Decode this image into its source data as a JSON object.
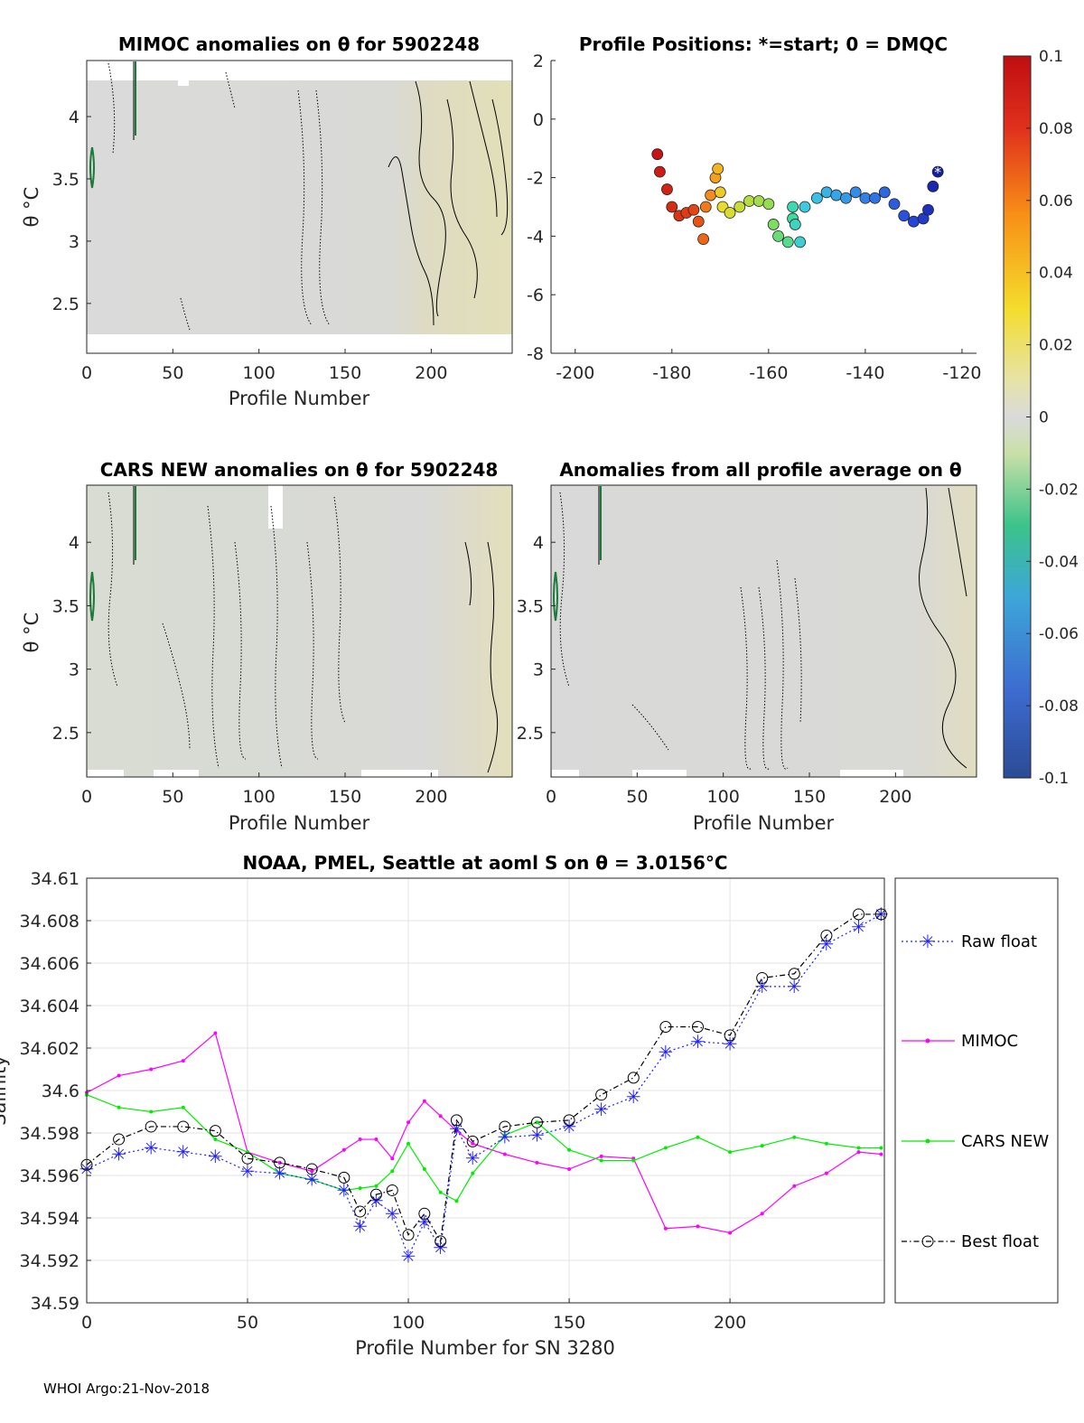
{
  "footer": "WHOI Argo:21-Nov-2018",
  "chart_data": [
    {
      "id": "mimoc",
      "type": "heatmap",
      "title": "MIMOC anomalies on θ  for 5902248",
      "xlabel": "Profile Number",
      "ylabel": "θ °C",
      "xlim": [
        0,
        247
      ],
      "ylim": [
        2.1,
        4.45
      ],
      "xticks": [
        0,
        50,
        100,
        150,
        200
      ],
      "yticks": [
        2.5,
        3,
        3.5,
        4
      ]
    },
    {
      "id": "positions",
      "type": "scatter",
      "title": "Profile Positions: *=start; 0 = DMQC",
      "xlim": [
        -205,
        -117
      ],
      "ylim": [
        -8,
        2
      ],
      "xticks": [
        -200,
        -180,
        -160,
        -140,
        -120
      ],
      "yticks": [
        -8,
        -6,
        -4,
        -2,
        0,
        2
      ],
      "track_lon": [
        -183,
        -182.5,
        -181,
        -180,
        -178.5,
        -177,
        -175.5,
        -174.5,
        -173.5,
        -173,
        -172,
        -171,
        -170.5,
        -170,
        -169.5,
        -168,
        -166,
        -164,
        -162,
        -160,
        -159,
        -158,
        -156,
        -155,
        -155,
        -154.5,
        -153.5,
        -152.5,
        -150,
        -148,
        -146,
        -144,
        -142,
        -140,
        -138,
        -136,
        -134,
        -132,
        -130,
        -128,
        -127,
        -126,
        -125
      ],
      "track_lat": [
        -1.2,
        -1.8,
        -2.4,
        -3.0,
        -3.3,
        -3.2,
        -3.1,
        -3.5,
        -4.1,
        -3.0,
        -2.6,
        -2.0,
        -1.7,
        -2.5,
        -3.0,
        -3.2,
        -3.0,
        -2.8,
        -2.8,
        -2.9,
        -3.6,
        -4.0,
        -4.2,
        -3.4,
        -3.0,
        -3.6,
        -4.2,
        -3.0,
        -2.7,
        -2.5,
        -2.6,
        -2.7,
        -2.5,
        -2.7,
        -2.7,
        -2.5,
        -2.9,
        -3.3,
        -3.5,
        -3.4,
        -3.1,
        -2.3,
        -1.8
      ]
    },
    {
      "id": "colorbar",
      "type": "heatmap",
      "colormap": "jet-like with gray center",
      "ticks": [
        0.1,
        0.08,
        0.06,
        0.04,
        0.02,
        0,
        -0.02,
        -0.04,
        -0.06,
        -0.08,
        -0.1
      ],
      "tick_labels": [
        "0.1",
        "0.08",
        "0.06",
        "0.04",
        "0.02",
        "0",
        "-0.02",
        "-0.04",
        "-0.06",
        "-0.08",
        "-0.1"
      ],
      "range": [
        -0.1,
        0.1
      ]
    },
    {
      "id": "cars",
      "type": "heatmap",
      "title": "CARS NEW anomalies on θ for 5902248",
      "xlabel": "Profile Number",
      "ylabel": "θ °C",
      "xlim": [
        0,
        247
      ],
      "ylim": [
        2.15,
        4.45
      ],
      "xticks": [
        0,
        50,
        100,
        150,
        200
      ],
      "yticks": [
        2.5,
        3,
        3.5,
        4
      ]
    },
    {
      "id": "allavg",
      "type": "heatmap",
      "title": "Anomalies from all profile average on θ",
      "xlabel": "Profile Number",
      "xlim": [
        0,
        247
      ],
      "ylim": [
        2.15,
        4.45
      ],
      "xticks": [
        0,
        50,
        100,
        150,
        200
      ],
      "yticks": [
        2.5,
        3,
        3.5,
        4
      ]
    },
    {
      "id": "salinity",
      "type": "line",
      "title": "NOAA, PMEL, Seattle at aoml S on θ = 3.0156°C",
      "xlabel": "Profile Number for SN 3280",
      "ylabel": "Salinity",
      "xlim": [
        0,
        248
      ],
      "ylim": [
        34.59,
        34.61
      ],
      "xticks": [
        0,
        50,
        100,
        150,
        200
      ],
      "yticks": [
        34.59,
        34.592,
        34.594,
        34.596,
        34.598,
        34.6,
        34.602,
        34.604,
        34.606,
        34.608,
        34.61
      ],
      "ytick_labels": [
        "34.59",
        "34.592",
        "34.594",
        "34.596",
        "34.598",
        "34.6",
        "34.602",
        "34.604",
        "34.606",
        "34.608",
        "34.61"
      ],
      "grid": true,
      "legend": "right",
      "x": [
        0,
        10,
        20,
        30,
        40,
        50,
        60,
        70,
        80,
        85,
        90,
        95,
        100,
        105,
        110,
        115,
        120,
        130,
        140,
        150,
        160,
        170,
        180,
        190,
        200,
        210,
        220,
        230,
        240,
        247
      ],
      "series": [
        {
          "name": "Raw float",
          "color": "#1f1fff",
          "values": [
            34.5963,
            34.597,
            34.5973,
            34.5971,
            34.5969,
            34.5962,
            34.5961,
            34.5958,
            34.5953,
            34.5936,
            34.5948,
            34.5942,
            34.5922,
            34.5938,
            34.5926,
            34.5982,
            34.5968,
            34.5978,
            34.5979,
            34.5983,
            34.5991,
            34.5997,
            34.6018,
            34.6023,
            34.6022,
            34.6049,
            34.6049,
            34.6069,
            34.6077,
            34.6083
          ]
        },
        {
          "name": "MIMOC",
          "color": "#ff00ff",
          "values": [
            34.5999,
            34.6007,
            34.601,
            34.6014,
            34.6027,
            34.5971,
            34.5966,
            34.5962,
            34.5972,
            34.5977,
            34.5977,
            34.5968,
            34.5985,
            34.5995,
            34.5988,
            34.5981,
            34.5975,
            34.597,
            34.5966,
            34.5963,
            34.5969,
            34.5968,
            34.5935,
            34.5936,
            34.5933,
            34.5942,
            34.5955,
            34.5961,
            34.5971,
            34.597
          ]
        },
        {
          "name": "CARS NEW",
          "color": "#00ee00",
          "values": [
            34.5998,
            34.5992,
            34.599,
            34.5992,
            34.5977,
            34.5971,
            34.5961,
            34.5958,
            34.5953,
            34.5954,
            34.5955,
            34.5962,
            34.5975,
            34.5963,
            34.5952,
            34.5948,
            34.5961,
            34.5979,
            34.5985,
            34.5972,
            34.5967,
            34.5967,
            34.5973,
            34.5978,
            34.5971,
            34.5974,
            34.5978,
            34.5975,
            34.5973,
            34.5973
          ]
        },
        {
          "name": "Best float",
          "color": "#000000",
          "values": [
            34.5965,
            34.5977,
            34.5983,
            34.5983,
            34.5981,
            34.5968,
            34.5966,
            34.5963,
            34.5959,
            34.5943,
            34.5951,
            34.5953,
            34.5932,
            34.5942,
            34.5929,
            34.5986,
            34.5976,
            34.5983,
            34.5985,
            34.5986,
            34.5998,
            34.6006,
            34.603,
            34.603,
            34.6026,
            34.6053,
            34.6055,
            34.6073,
            34.6083,
            34.6083
          ]
        }
      ]
    }
  ]
}
